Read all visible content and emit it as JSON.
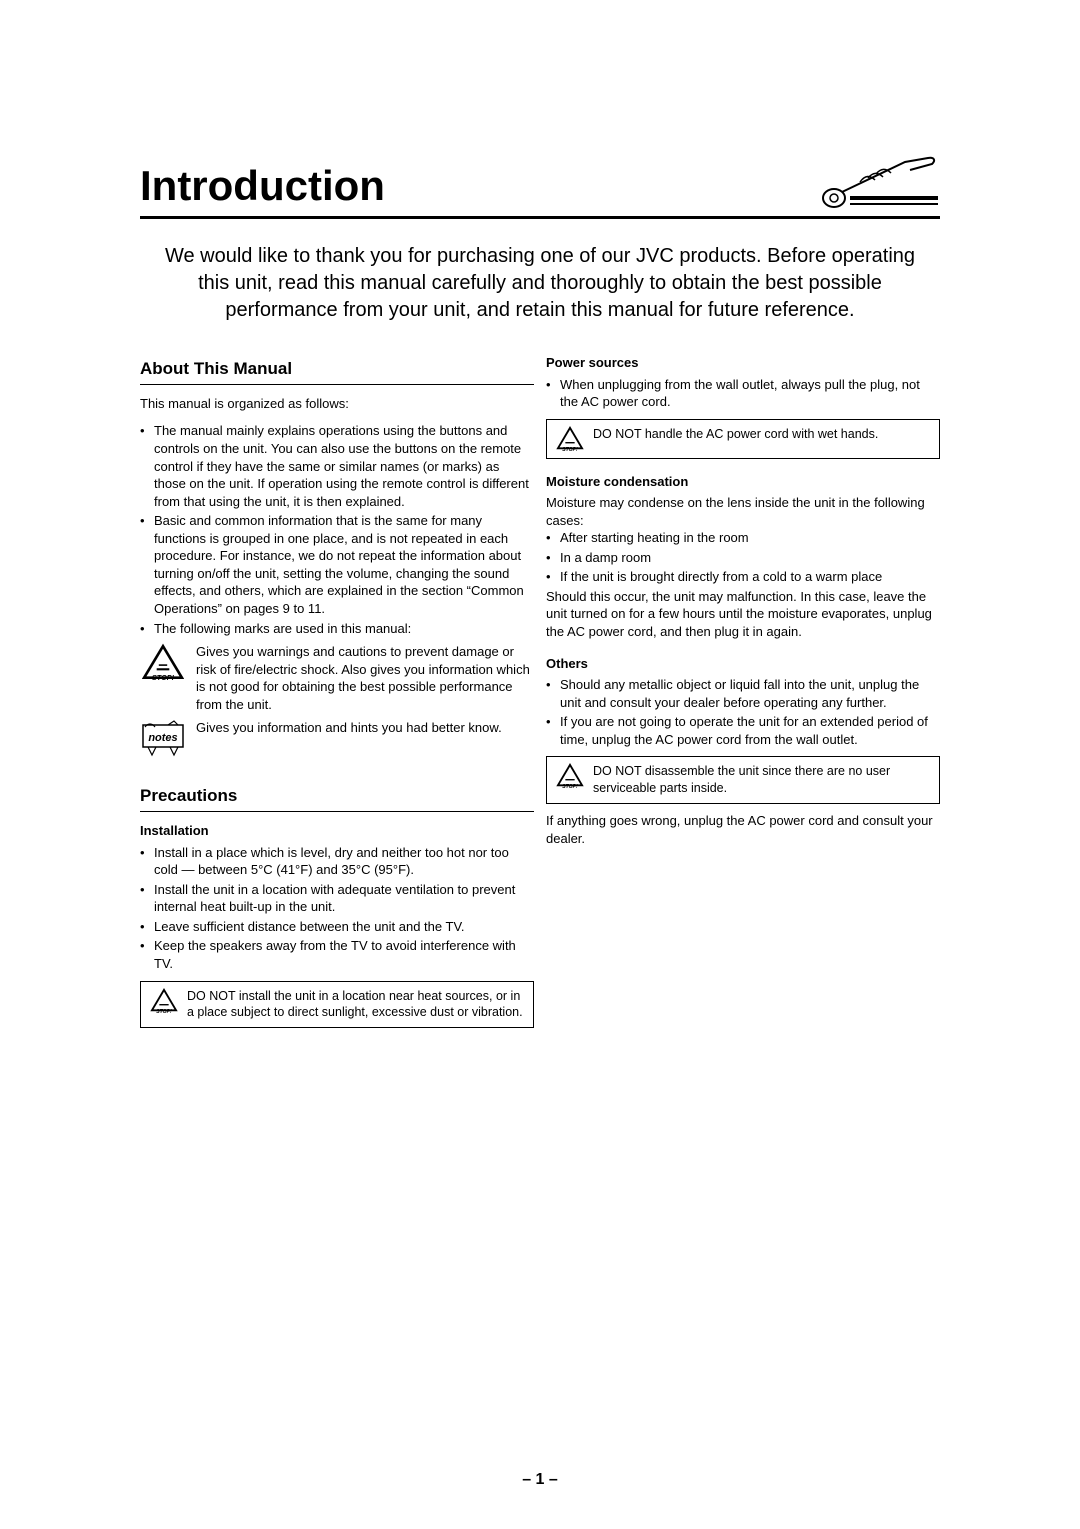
{
  "title": "Introduction",
  "intro": "We would like to thank you for purchasing one of our JVC products. Before operating this unit, read this manual carefully and thoroughly to obtain the best possible performance from your unit, and retain this manual for future reference.",
  "aboutHeading": "About This Manual",
  "aboutIntro": "This manual is organized as follows:",
  "aboutBullets": [
    "The manual mainly explains operations using the buttons and controls on the unit. You can also use the buttons on the remote control if they have the same or similar names (or marks) as those on the unit. If operation using the remote control is different from that using the unit, it is then explained.",
    "Basic and common information that is the same for many functions is grouped in one place, and is not repeated in each procedure. For instance, we do not repeat the information about turning on/off the unit, setting the volume, changing the sound effects, and others, which are explained in the section “Common Operations” on pages 9 to 11.",
    "The following marks are used in this manual:"
  ],
  "stopText": "Gives you warnings and cautions to prevent damage or risk of fire/electric shock. Also gives you information which is not good for obtaining the best possible performance from the unit.",
  "notesText": "Gives you information and hints you had better know.",
  "precautionsHeading": "Precautions",
  "installationHeading": "Installation",
  "installationBullets": [
    "Install in a place which is level, dry and neither too hot nor too cold — between 5°C (41°F) and 35°C (95°F).",
    "Install the unit in a location with adequate ventilation to prevent internal heat built-up in the unit.",
    "Leave sufficient distance between the unit and the TV.",
    "Keep the speakers away from the TV to avoid interference with TV."
  ],
  "installationWarn": "DO NOT install the unit in a location near heat sources, or in a place subject to direct sunlight, excessive dust or vibration.",
  "powerHeading": "Power sources",
  "powerBullets": [
    "When unplugging from the wall outlet, always pull the plug, not the AC power cord."
  ],
  "powerWarn": "DO NOT handle the AC power cord with wet hands.",
  "moistureHeading": "Moisture condensation",
  "moistureIntro": "Moisture may condense on the lens inside the unit in the following cases:",
  "moistureBullets": [
    "After starting heating in the room",
    "In a damp room",
    "If the unit is brought directly from a cold to a warm place"
  ],
  "moistureAfter": "Should this occur, the unit may malfunction. In this case, leave the unit turned on for a few hours until the moisture evaporates, unplug the AC power cord, and then plug it in again.",
  "othersHeading": "Others",
  "othersBullets": [
    "Should any metallic object or liquid fall into the unit, unplug the unit and consult your dealer before operating any further.",
    "If you are not going to operate the unit for an extended period of time, unplug the AC power cord from the wall outlet."
  ],
  "othersWarn": "DO NOT disassemble the unit since there are no user serviceable parts inside.",
  "othersAfter": "If anything goes wrong, unplug the AC power cord and consult your dealer.",
  "bulletMark": "•",
  "pageNumber": "– 1 –",
  "colors": {
    "text": "#000000",
    "bg": "#ffffff",
    "rule": "#000000"
  }
}
